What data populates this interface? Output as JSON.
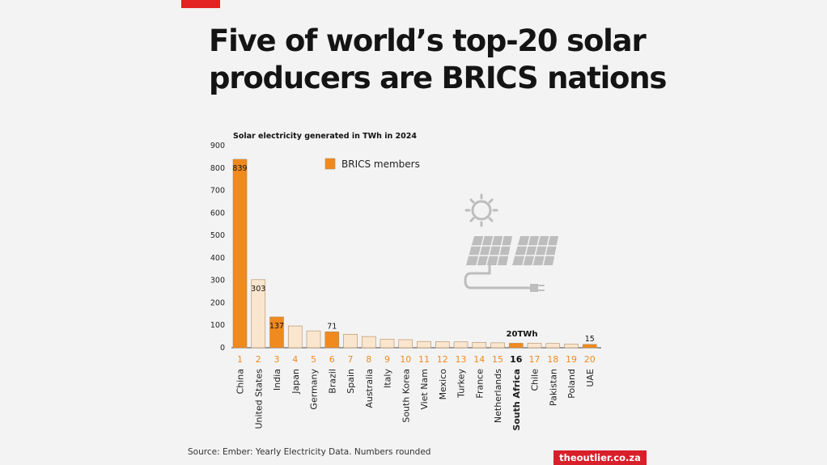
{
  "header": {
    "title_line1": "Five of world’s top-20 solar",
    "title_line2": "producers are BRICS nations"
  },
  "footer": {
    "source": "Source: Ember: Yearly Electricity Data. Numbers rounded",
    "brand": "theoutlier.co.za"
  },
  "colors": {
    "brics": "#f08a1e",
    "other": "#fae6cf",
    "stroke": "#b38a5c",
    "icon": "#bdbdbd"
  },
  "chart_data": {
    "type": "bar",
    "title": "Solar electricity generated in TWh in 2024",
    "ylim": [
      0,
      900
    ],
    "yticks": [
      0,
      100,
      200,
      300,
      400,
      500,
      600,
      700,
      800,
      900
    ],
    "legend": {
      "label": "BRICS members",
      "placement": "top-center"
    },
    "annotation": "20TWh",
    "categories": [
      "China",
      "United States",
      "India",
      "Japan",
      "Germany",
      "Brazil",
      "Spain",
      "Australia",
      "Italy",
      "South Korea",
      "Viet Nam",
      "Mexico",
      "Turkey",
      "France",
      "Netherlands",
      "South Africa",
      "Chile",
      "Pakistan",
      "Poland",
      "UAE"
    ],
    "ranks": [
      "1",
      "2",
      "3",
      "4",
      "5",
      "6",
      "7",
      "8",
      "9",
      "10",
      "11",
      "12",
      "13",
      "14",
      "15",
      "16",
      "17",
      "18",
      "19",
      "20"
    ],
    "values": [
      839,
      303,
      137,
      97,
      75,
      71,
      60,
      50,
      38,
      36,
      28,
      27,
      26,
      24,
      22,
      20,
      20,
      19,
      16,
      15
    ],
    "brics": [
      true,
      false,
      true,
      false,
      false,
      true,
      false,
      false,
      false,
      false,
      false,
      false,
      false,
      false,
      false,
      true,
      false,
      false,
      false,
      true
    ],
    "data_labels": {
      "0": "839",
      "1": "303",
      "2": "137",
      "5": "71",
      "19": "15"
    },
    "highlight": "South Africa"
  }
}
